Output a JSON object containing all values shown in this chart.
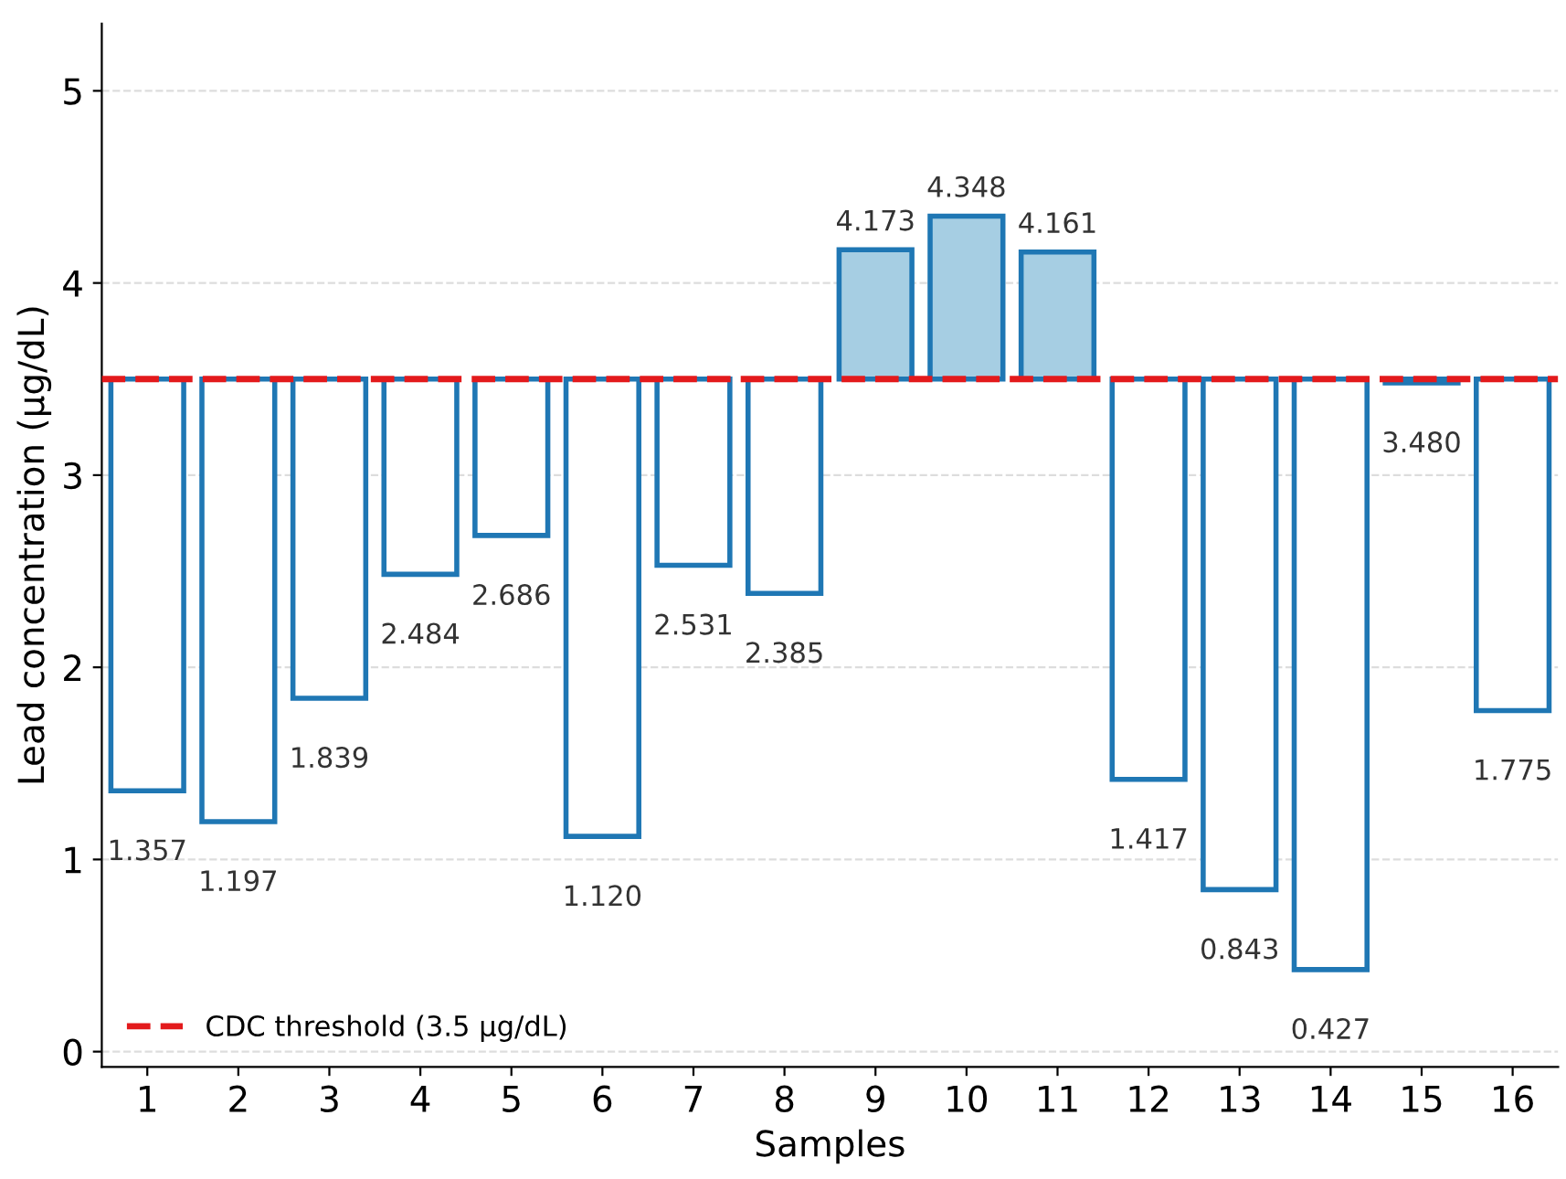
{
  "chart_data": {
    "type": "bar",
    "x": [
      1,
      2,
      3,
      4,
      5,
      6,
      7,
      8,
      9,
      10,
      11,
      12,
      13,
      14,
      15,
      16
    ],
    "base": [
      3.5,
      3.5,
      3.5,
      3.5,
      3.5,
      3.5,
      3.5,
      3.5,
      3.5,
      3.5,
      3.5,
      3.5,
      3.5,
      3.5,
      3.5,
      3.5
    ],
    "values": [
      -2.143,
      -2.303,
      -1.661,
      -1.016,
      -0.814,
      -2.38,
      -0.969,
      -1.115,
      0.673,
      0.848,
      0.661,
      -2.083,
      -2.657,
      -3.073,
      -0.02,
      -1.725
    ],
    "value_labels": [
      "1.357",
      "1.197",
      "1.839",
      "2.484",
      "2.686",
      "1.120",
      "2.531",
      "2.385",
      "4.173",
      "4.348",
      "4.161",
      "1.417",
      "0.843",
      "0.427",
      "3.480",
      "1.775"
    ],
    "color": "#1f77b4",
    "colors": [
      "#ffffff",
      "#ffffff",
      "#ffffff",
      "#ffffff",
      "#ffffff",
      "#ffffff",
      "#ffffff",
      "#ffffff",
      "#a6cee3",
      "#a6cee3",
      "#a6cee3",
      "#ffffff",
      "#ffffff",
      "#ffffff",
      "#ffffff",
      "#ffffff"
    ],
    "xlabel": "Samples",
    "ylabel": "Lead concentration (µg/dL)",
    "xlim": [
      0.5,
      16.5
    ],
    "xticks": [
      1,
      2,
      3,
      4,
      5,
      6,
      7,
      8,
      9,
      10,
      11,
      12,
      13,
      14,
      15,
      16
    ],
    "ylim": [
      -0.08,
      5.35
    ],
    "yticks": [
      0,
      1,
      2,
      3,
      4,
      5
    ],
    "ref_lines": [
      {
        "axis": "y",
        "value": 3.5,
        "label": "CDC threshold (3.5 µg/dL)",
        "color": "#e31a1c",
        "line_style": "dashed"
      }
    ],
    "grid": "y",
    "legend": "bottom left"
  }
}
